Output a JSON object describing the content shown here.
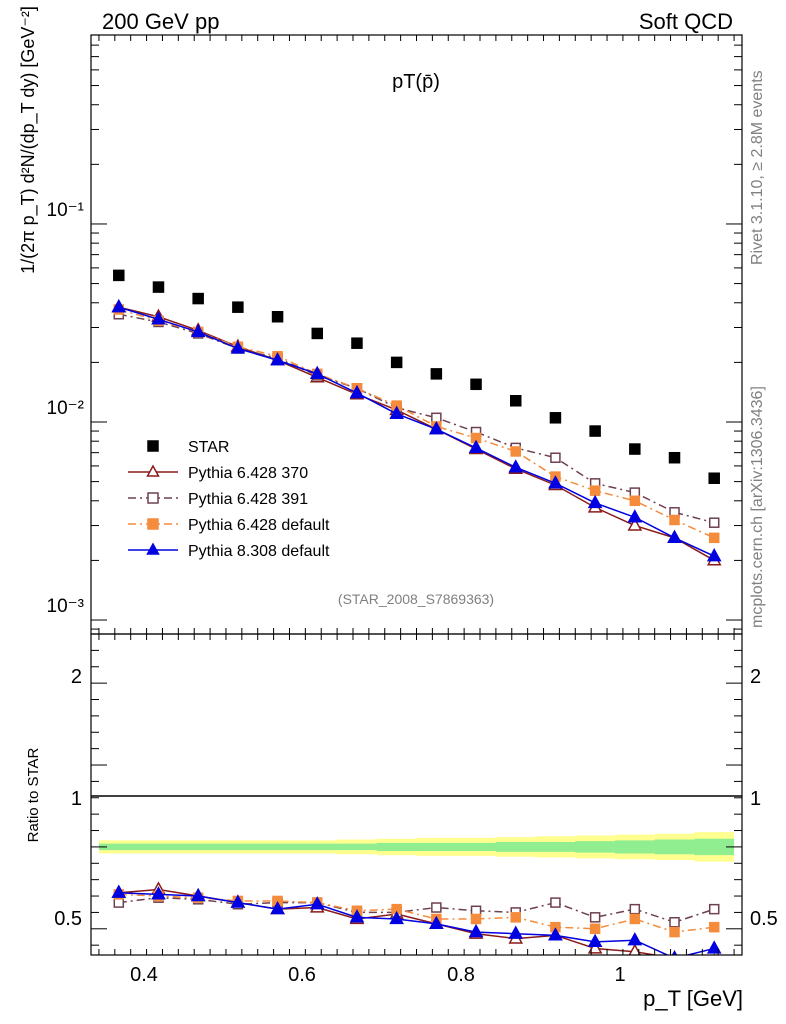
{
  "header": {
    "left": "200 GeV pp",
    "right": "Soft QCD"
  },
  "side_texts": {
    "rivet": "Rivet 3.1.10, ≥ 2.8M events",
    "source": "mcplots.cern.ch [arXiv:1306.3436]"
  },
  "chart_data": [
    {
      "type": "line",
      "title": "pT(p̄)",
      "analysis_label": "(STAR_2008_S7869363)",
      "ylabel": "1/(2π p_T) d²N/(dp_T dy) [GeV⁻²]",
      "xlabel": "p_T [GeV]",
      "yscale": "log",
      "xlim": [
        0.34,
        1.16
      ],
      "ylim": [
        0.00085,
        0.9
      ],
      "y_tick_labels": [
        "10⁻³",
        "10⁻²",
        "10⁻¹"
      ],
      "x": [
        0.375,
        0.425,
        0.475,
        0.525,
        0.575,
        0.625,
        0.675,
        0.725,
        0.775,
        0.825,
        0.875,
        0.925,
        0.975,
        1.025,
        1.075,
        1.125
      ],
      "legend_position": "lower-left",
      "series": [
        {
          "name": "STAR",
          "color": "#000000",
          "marker": "square-filled",
          "line": "none",
          "values": [
            0.055,
            0.048,
            0.042,
            0.038,
            0.034,
            0.028,
            0.025,
            0.02,
            0.0175,
            0.0155,
            0.0128,
            0.0105,
            0.009,
            0.0073,
            0.0066,
            0.0052
          ]
        },
        {
          "name": "Pythia 6.428 370",
          "color": "#8b1a1a",
          "marker": "triangle-open",
          "line": "solid",
          "values": [
            0.038,
            0.034,
            0.029,
            0.024,
            0.0205,
            0.0168,
            0.0138,
            0.0115,
            0.0092,
            0.0073,
            0.0058,
            0.0048,
            0.0037,
            0.003,
            0.0026,
            0.002
          ]
        },
        {
          "name": "Pythia 6.428 391",
          "color": "#6e4050",
          "marker": "square-open",
          "line": "dashdot",
          "values": [
            0.035,
            0.032,
            0.028,
            0.0235,
            0.021,
            0.0172,
            0.0148,
            0.0118,
            0.0105,
            0.0089,
            0.0074,
            0.0066,
            0.0049,
            0.0044,
            0.0035,
            0.0031
          ]
        },
        {
          "name": "Pythia 6.428 default",
          "color": "#f58c3c",
          "marker": "square-filled",
          "line": "dashdot",
          "values": [
            0.037,
            0.0325,
            0.0285,
            0.024,
            0.0215,
            0.0175,
            0.0148,
            0.0121,
            0.0095,
            0.0083,
            0.0071,
            0.0053,
            0.0045,
            0.004,
            0.0032,
            0.0026
          ]
        },
        {
          "name": "Pythia 8.308 default",
          "color": "#0000e0",
          "marker": "triangle-filled",
          "line": "solid",
          "values": [
            0.038,
            0.033,
            0.0285,
            0.0235,
            0.0205,
            0.0175,
            0.014,
            0.011,
            0.0092,
            0.0074,
            0.0059,
            0.0049,
            0.0039,
            0.0033,
            0.0026,
            0.0021
          ]
        }
      ]
    },
    {
      "type": "line",
      "title": "",
      "ylabel": "Ratio to STAR",
      "xlabel": "p_T [GeV]",
      "xlim": [
        0.34,
        1.16
      ],
      "ylim": [
        0.34,
        2.3
      ],
      "x_tick_labels": [
        "0.4",
        "0.6",
        "0.8",
        "1"
      ],
      "y_tick_labels": [
        "0.5",
        "1",
        "2"
      ],
      "band_inner_color": "#90ee90",
      "band_outer_color": "#ffff90",
      "band_inner_halfwidth": [
        0.02,
        0.02,
        0.02,
        0.02,
        0.02,
        0.02,
        0.02,
        0.025,
        0.025,
        0.025,
        0.03,
        0.03,
        0.035,
        0.04,
        0.045,
        0.05
      ],
      "band_outer_halfwidth": [
        0.04,
        0.04,
        0.04,
        0.04,
        0.04,
        0.04,
        0.045,
        0.05,
        0.055,
        0.055,
        0.06,
        0.065,
        0.07,
        0.075,
        0.08,
        0.09
      ],
      "x": [
        0.375,
        0.425,
        0.475,
        0.525,
        0.575,
        0.625,
        0.675,
        0.725,
        0.775,
        0.825,
        0.875,
        0.925,
        0.975,
        1.025,
        1.075,
        1.125
      ],
      "series": [
        {
          "name": "Pythia 6.428 370",
          "color": "#8b1a1a",
          "marker": "triangle-open",
          "line": "solid",
          "values": [
            0.72,
            0.74,
            0.7,
            0.66,
            0.62,
            0.63,
            0.56,
            0.59,
            0.53,
            0.47,
            0.44,
            0.46,
            0.38,
            0.36,
            0.32,
            0.3
          ]
        },
        {
          "name": "Pythia 6.428 391",
          "color": "#6e4050",
          "marker": "square-open",
          "line": "dashdot",
          "values": [
            0.66,
            0.69,
            0.68,
            0.65,
            0.66,
            0.66,
            0.6,
            0.6,
            0.63,
            0.61,
            0.6,
            0.66,
            0.57,
            0.62,
            0.54,
            0.62
          ]
        },
        {
          "name": "Pythia 6.428 default",
          "color": "#f58c3c",
          "marker": "square-filled",
          "line": "dashdot",
          "values": [
            0.71,
            0.7,
            0.69,
            0.67,
            0.67,
            0.66,
            0.61,
            0.62,
            0.56,
            0.56,
            0.57,
            0.51,
            0.5,
            0.56,
            0.48,
            0.51
          ]
        },
        {
          "name": "Pythia 8.308 default",
          "color": "#0000e0",
          "marker": "triangle-filled",
          "line": "solid",
          "values": [
            0.72,
            0.71,
            0.7,
            0.66,
            0.62,
            0.65,
            0.57,
            0.56,
            0.53,
            0.48,
            0.47,
            0.46,
            0.42,
            0.43,
            0.32,
            0.38
          ]
        }
      ]
    }
  ]
}
